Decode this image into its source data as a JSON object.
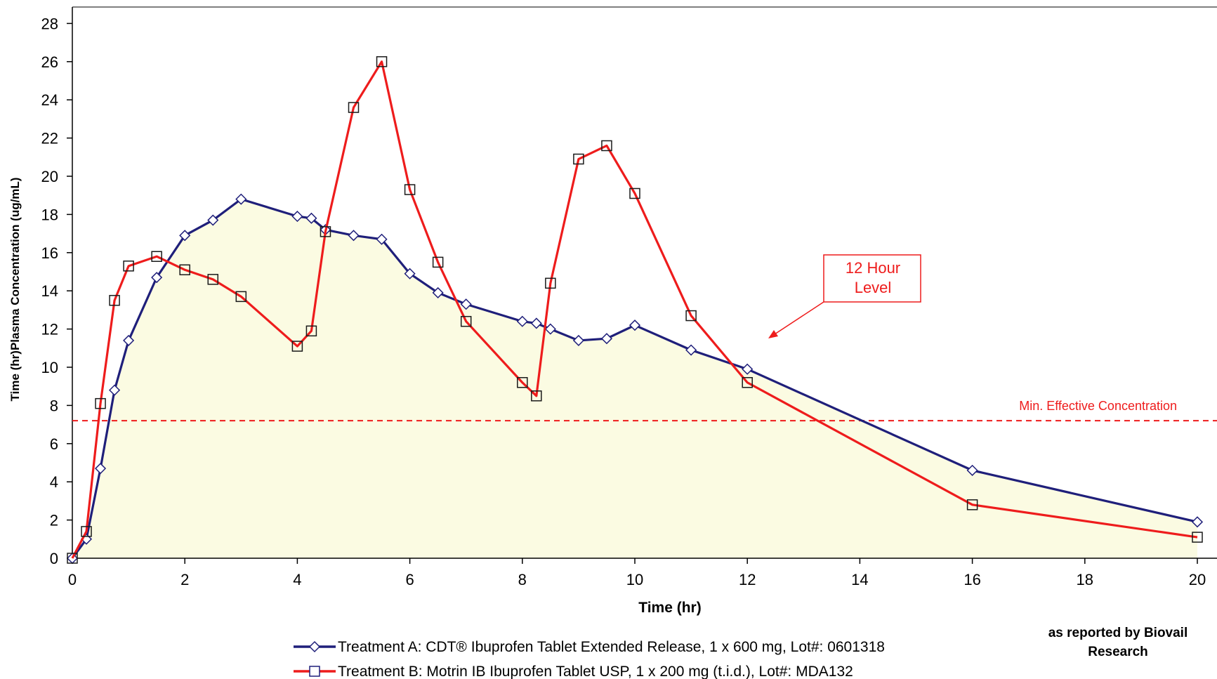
{
  "chart_data": {
    "type": "line",
    "xlabel": "Time (hr)",
    "ylabel": "Time (hr)Plasma Concentration (ug/mL)",
    "xlim": [
      0,
      20.5
    ],
    "ylim": [
      0,
      29
    ],
    "x_ticks": [
      "0",
      "2",
      "4",
      "6",
      "8",
      "10",
      "12",
      "14",
      "16",
      "18",
      "20"
    ],
    "y_ticks": [
      "0",
      "2",
      "4",
      "6",
      "8",
      "10",
      "12",
      "14",
      "16",
      "18",
      "20",
      "22",
      "24",
      "26",
      "28"
    ],
    "grid": false,
    "series": [
      {
        "name": "Treatment A: CDT® Ibuprofen Tablet Extended Release, 1 x 600 mg, Lot#: 0601318",
        "color": "#1f1f7a",
        "marker": "diamond",
        "filled_area": true,
        "fill_color": "#fbfbe2",
        "x": [
          0,
          0.25,
          0.5,
          0.75,
          1,
          1.5,
          2,
          2.5,
          3,
          4,
          4.25,
          4.5,
          5,
          5.5,
          6,
          6.5,
          7,
          8,
          8.25,
          8.5,
          9,
          9.5,
          10,
          11,
          12,
          16,
          20
        ],
        "y": [
          0,
          1.0,
          4.7,
          8.8,
          11.4,
          14.7,
          16.9,
          17.7,
          18.8,
          17.9,
          17.8,
          17.2,
          16.9,
          16.7,
          14.9,
          13.9,
          13.3,
          12.4,
          12.3,
          12.0,
          11.4,
          11.5,
          12.2,
          10.9,
          9.9,
          4.6,
          1.9
        ]
      },
      {
        "name": "Treatment B: Motrin IB Ibuprofen Tablet USP, 1 x 200 mg (t.i.d.), Lot#: MDA132",
        "color": "#ee1c1c",
        "marker": "square",
        "filled_area": false,
        "x": [
          0,
          0.25,
          0.5,
          0.75,
          1,
          1.5,
          2,
          2.5,
          3,
          4,
          4.25,
          4.5,
          5,
          5.5,
          6,
          6.5,
          7,
          8,
          8.25,
          8.5,
          9,
          9.5,
          10,
          11,
          12,
          16,
          20
        ],
        "y": [
          0,
          1.4,
          8.1,
          13.5,
          15.3,
          15.8,
          15.1,
          14.6,
          13.7,
          11.1,
          11.9,
          17.1,
          23.6,
          26.0,
          19.3,
          15.5,
          12.4,
          9.2,
          8.5,
          14.4,
          20.9,
          21.6,
          19.1,
          12.7,
          9.2,
          2.8,
          1.1
        ]
      }
    ],
    "reference_line": {
      "label": "Min. Effective Concentration",
      "y": 7.2,
      "color": "#ee1c1c",
      "style": "dashed"
    },
    "annotation": {
      "text_lines": [
        "12 Hour",
        "Level"
      ],
      "color": "#ee1c1c"
    },
    "credit_lines": [
      "as reported by Biovail",
      "Research"
    ],
    "legend_placement": "bottom"
  }
}
